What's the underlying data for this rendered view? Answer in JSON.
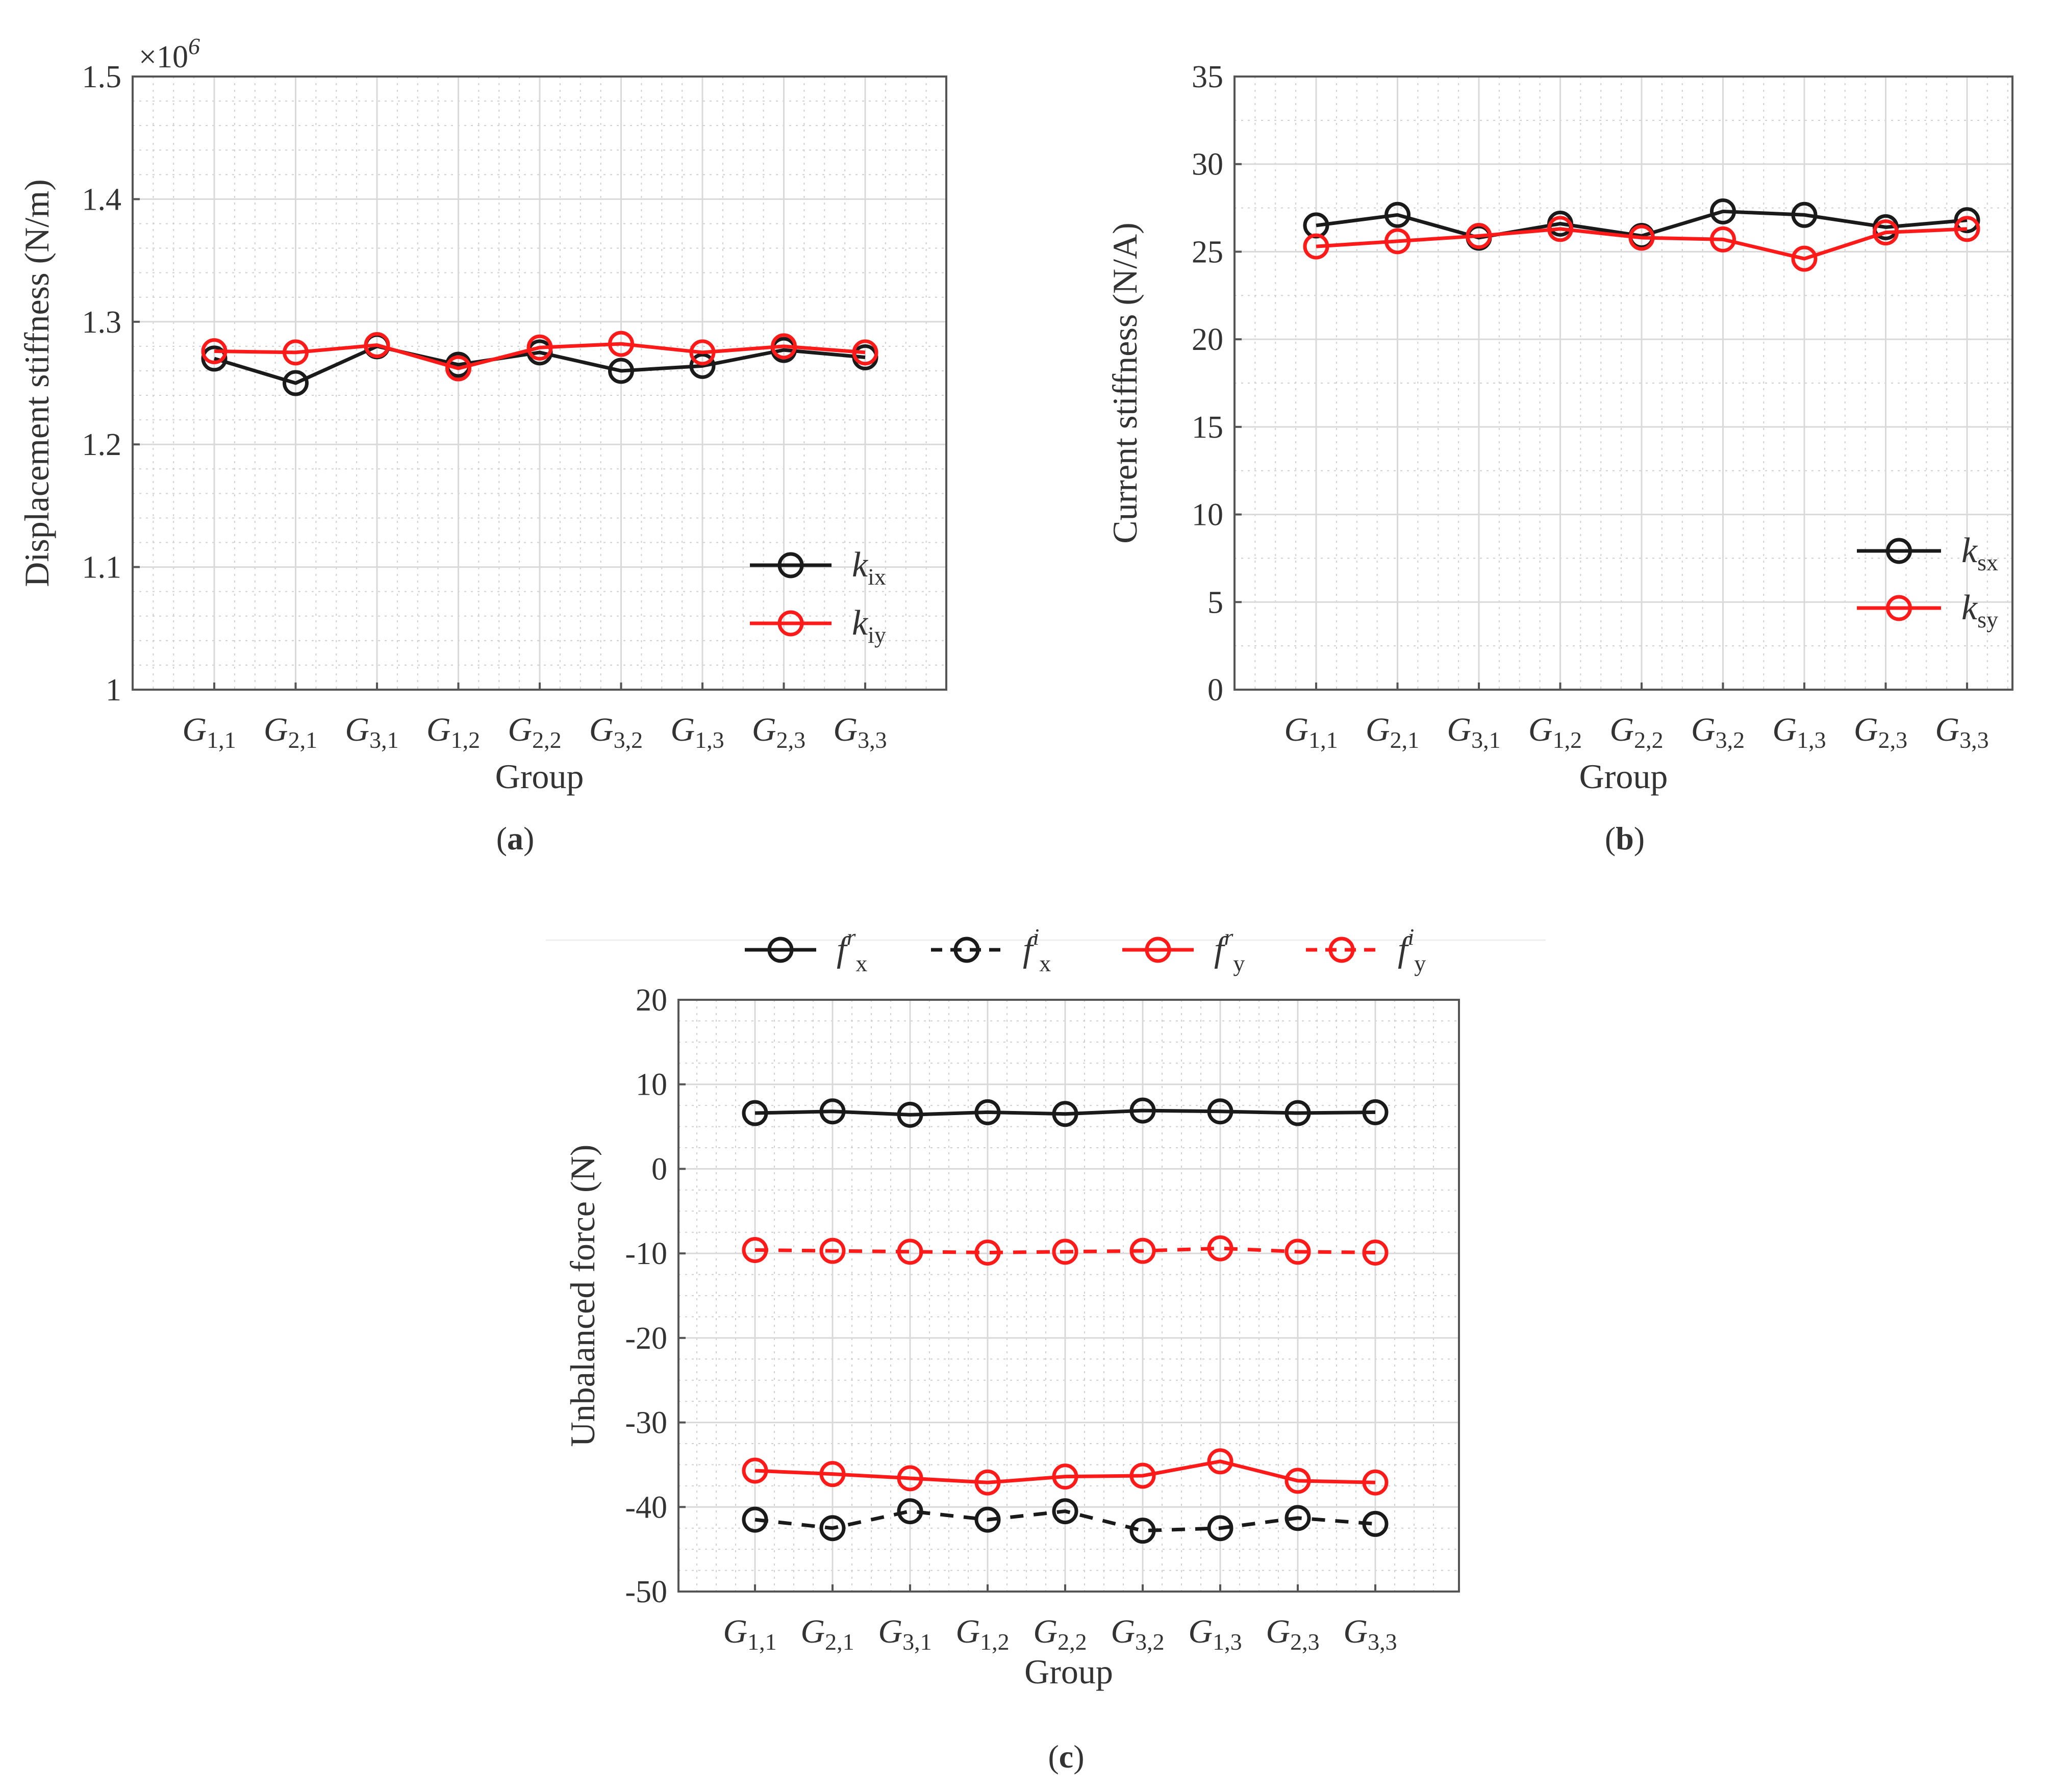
{
  "colors": {
    "black": "#1a1a1a",
    "red": "#ff1a1a"
  },
  "categories": [
    {
      "base": "G",
      "sub": "1,1"
    },
    {
      "base": "G",
      "sub": "2,1"
    },
    {
      "base": "G",
      "sub": "3,1"
    },
    {
      "base": "G",
      "sub": "1,2"
    },
    {
      "base": "G",
      "sub": "2,2"
    },
    {
      "base": "G",
      "sub": "3,2"
    },
    {
      "base": "G",
      "sub": "1,3"
    },
    {
      "base": "G",
      "sub": "2,3"
    },
    {
      "base": "G",
      "sub": "3,3"
    }
  ],
  "chart_data": [
    {
      "id": "a",
      "type": "line",
      "panel_label": "a",
      "xlabel": "Group",
      "ylabel": "Displacement stiffness (N/m)",
      "y_multiplier": "×10",
      "y_multiplier_exp": "6",
      "ylim": [
        1.0,
        1.5
      ],
      "yticks": [
        1.0,
        1.1,
        1.2,
        1.3,
        1.4,
        1.5
      ],
      "ytick_labels": [
        "1",
        "1.1",
        "1.2",
        "1.3",
        "1.4",
        "1.5"
      ],
      "minor_per_major": 5,
      "legend_position": "lower-right",
      "series": [
        {
          "name": "k",
          "sub": "ix",
          "sup": "",
          "color": "black",
          "dashed": false,
          "values": [
            1.27,
            1.25,
            1.28,
            1.265,
            1.275,
            1.26,
            1.264,
            1.277,
            1.271
          ]
        },
        {
          "name": "k",
          "sub": "iy",
          "sup": "",
          "color": "red",
          "dashed": false,
          "values": [
            1.276,
            1.275,
            1.281,
            1.262,
            1.279,
            1.282,
            1.275,
            1.28,
            1.275
          ]
        }
      ]
    },
    {
      "id": "b",
      "type": "line",
      "panel_label": "b",
      "xlabel": "Group",
      "ylabel": "Current stiffness (N/A)",
      "ylim": [
        0,
        35
      ],
      "yticks": [
        0,
        5,
        10,
        15,
        20,
        25,
        30,
        35
      ],
      "ytick_labels": [
        "0",
        "5",
        "10",
        "15",
        "20",
        "25",
        "30",
        "35"
      ],
      "minor_per_major": 2,
      "legend_position": "lower-right",
      "series": [
        {
          "name": "k",
          "sub": "sx",
          "sup": "",
          "color": "black",
          "dashed": false,
          "values": [
            26.5,
            27.1,
            25.8,
            26.6,
            25.9,
            27.3,
            27.1,
            26.4,
            26.8
          ]
        },
        {
          "name": "k",
          "sub": "sy",
          "sup": "",
          "color": "red",
          "dashed": false,
          "values": [
            25.3,
            25.6,
            25.9,
            26.3,
            25.8,
            25.7,
            24.6,
            26.1,
            26.3
          ]
        }
      ]
    },
    {
      "id": "c",
      "type": "line",
      "panel_label": "c",
      "xlabel": "Group",
      "ylabel": "Unbalanced force (N)",
      "ylim": [
        -50,
        20
      ],
      "yticks": [
        -50,
        -40,
        -30,
        -20,
        -10,
        0,
        10,
        20
      ],
      "ytick_labels": [
        "-50",
        "-40",
        "-30",
        "-20",
        "-10",
        "0",
        "10",
        "20"
      ],
      "minor_per_major": 4,
      "legend_position": "top",
      "series": [
        {
          "name": "f",
          "sub": "x",
          "sup": "r",
          "color": "black",
          "dashed": false,
          "values": [
            6.6,
            6.8,
            6.4,
            6.7,
            6.5,
            6.9,
            6.8,
            6.6,
            6.7
          ]
        },
        {
          "name": "f",
          "sub": "x",
          "sup": "i",
          "color": "black",
          "dashed": true,
          "values": [
            -41.5,
            -42.5,
            -40.5,
            -41.5,
            -40.5,
            -42.8,
            -42.5,
            -41.3,
            -42.0
          ]
        },
        {
          "name": "f",
          "sub": "y",
          "sup": "r",
          "color": "red",
          "dashed": false,
          "values": [
            -35.7,
            -36.1,
            -36.6,
            -37.1,
            -36.4,
            -36.3,
            -34.6,
            -36.9,
            -37.1
          ]
        },
        {
          "name": "f",
          "sub": "y",
          "sup": "i",
          "color": "red",
          "dashed": true,
          "values": [
            -9.6,
            -9.7,
            -9.8,
            -9.9,
            -9.8,
            -9.7,
            -9.4,
            -9.8,
            -9.9
          ]
        }
      ]
    }
  ]
}
